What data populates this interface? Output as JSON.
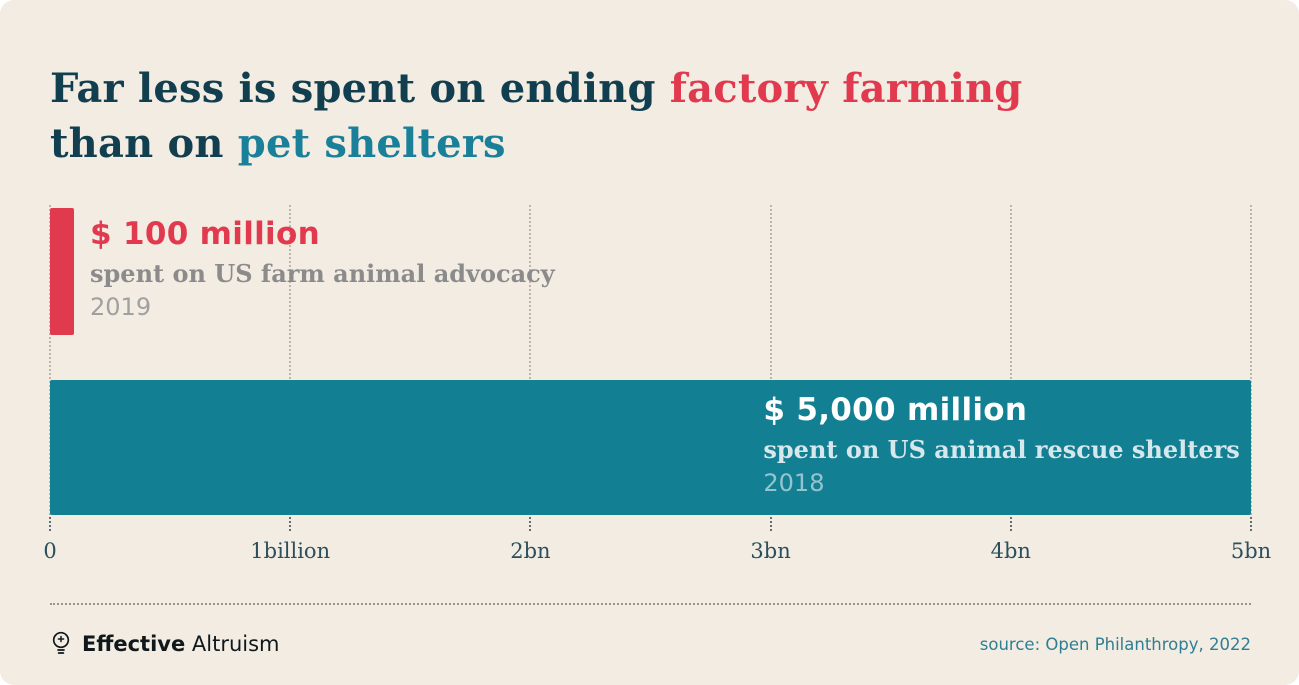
{
  "title": {
    "part1": "Far less is spent on ending ",
    "highlight1": "factory farming",
    "part2": "than on ",
    "highlight2": "pet shelters"
  },
  "chart_data": {
    "type": "bar",
    "orientation": "horizontal",
    "unit": "USD millions",
    "title": "Far less is spent on ending factory farming than on pet shelters",
    "series": [
      {
        "name": "US farm animal advocacy",
        "value_millions": 100,
        "value_label": "$ 100 million",
        "sublabel": "spent on US farm animal advocacy",
        "year": "2019",
        "color": "#e13a4f"
      },
      {
        "name": "US animal rescue shelters",
        "value_millions": 5000,
        "value_label": "$ 5,000 million",
        "sublabel": "spent on US animal rescue shelters",
        "year": "2018",
        "color": "#137f93"
      }
    ],
    "x_axis": {
      "min_millions": 0,
      "max_millions": 5000,
      "ticks": [
        "0",
        "1billion",
        "2bn",
        "3bn",
        "4bn",
        "5bn"
      ],
      "gridlines": true
    },
    "legend": "none"
  },
  "footer": {
    "brand_bold": "Effective",
    "brand_regular": "Altruism",
    "source": "source: Open Philanthropy, 2022"
  },
  "colors": {
    "background": "#f2ece2",
    "title_dark": "#123f4f",
    "accent_red": "#e13a4f",
    "accent_teal": "#137f93",
    "gray_text": "#8b8b8b",
    "source_text": "#2f7e93"
  }
}
